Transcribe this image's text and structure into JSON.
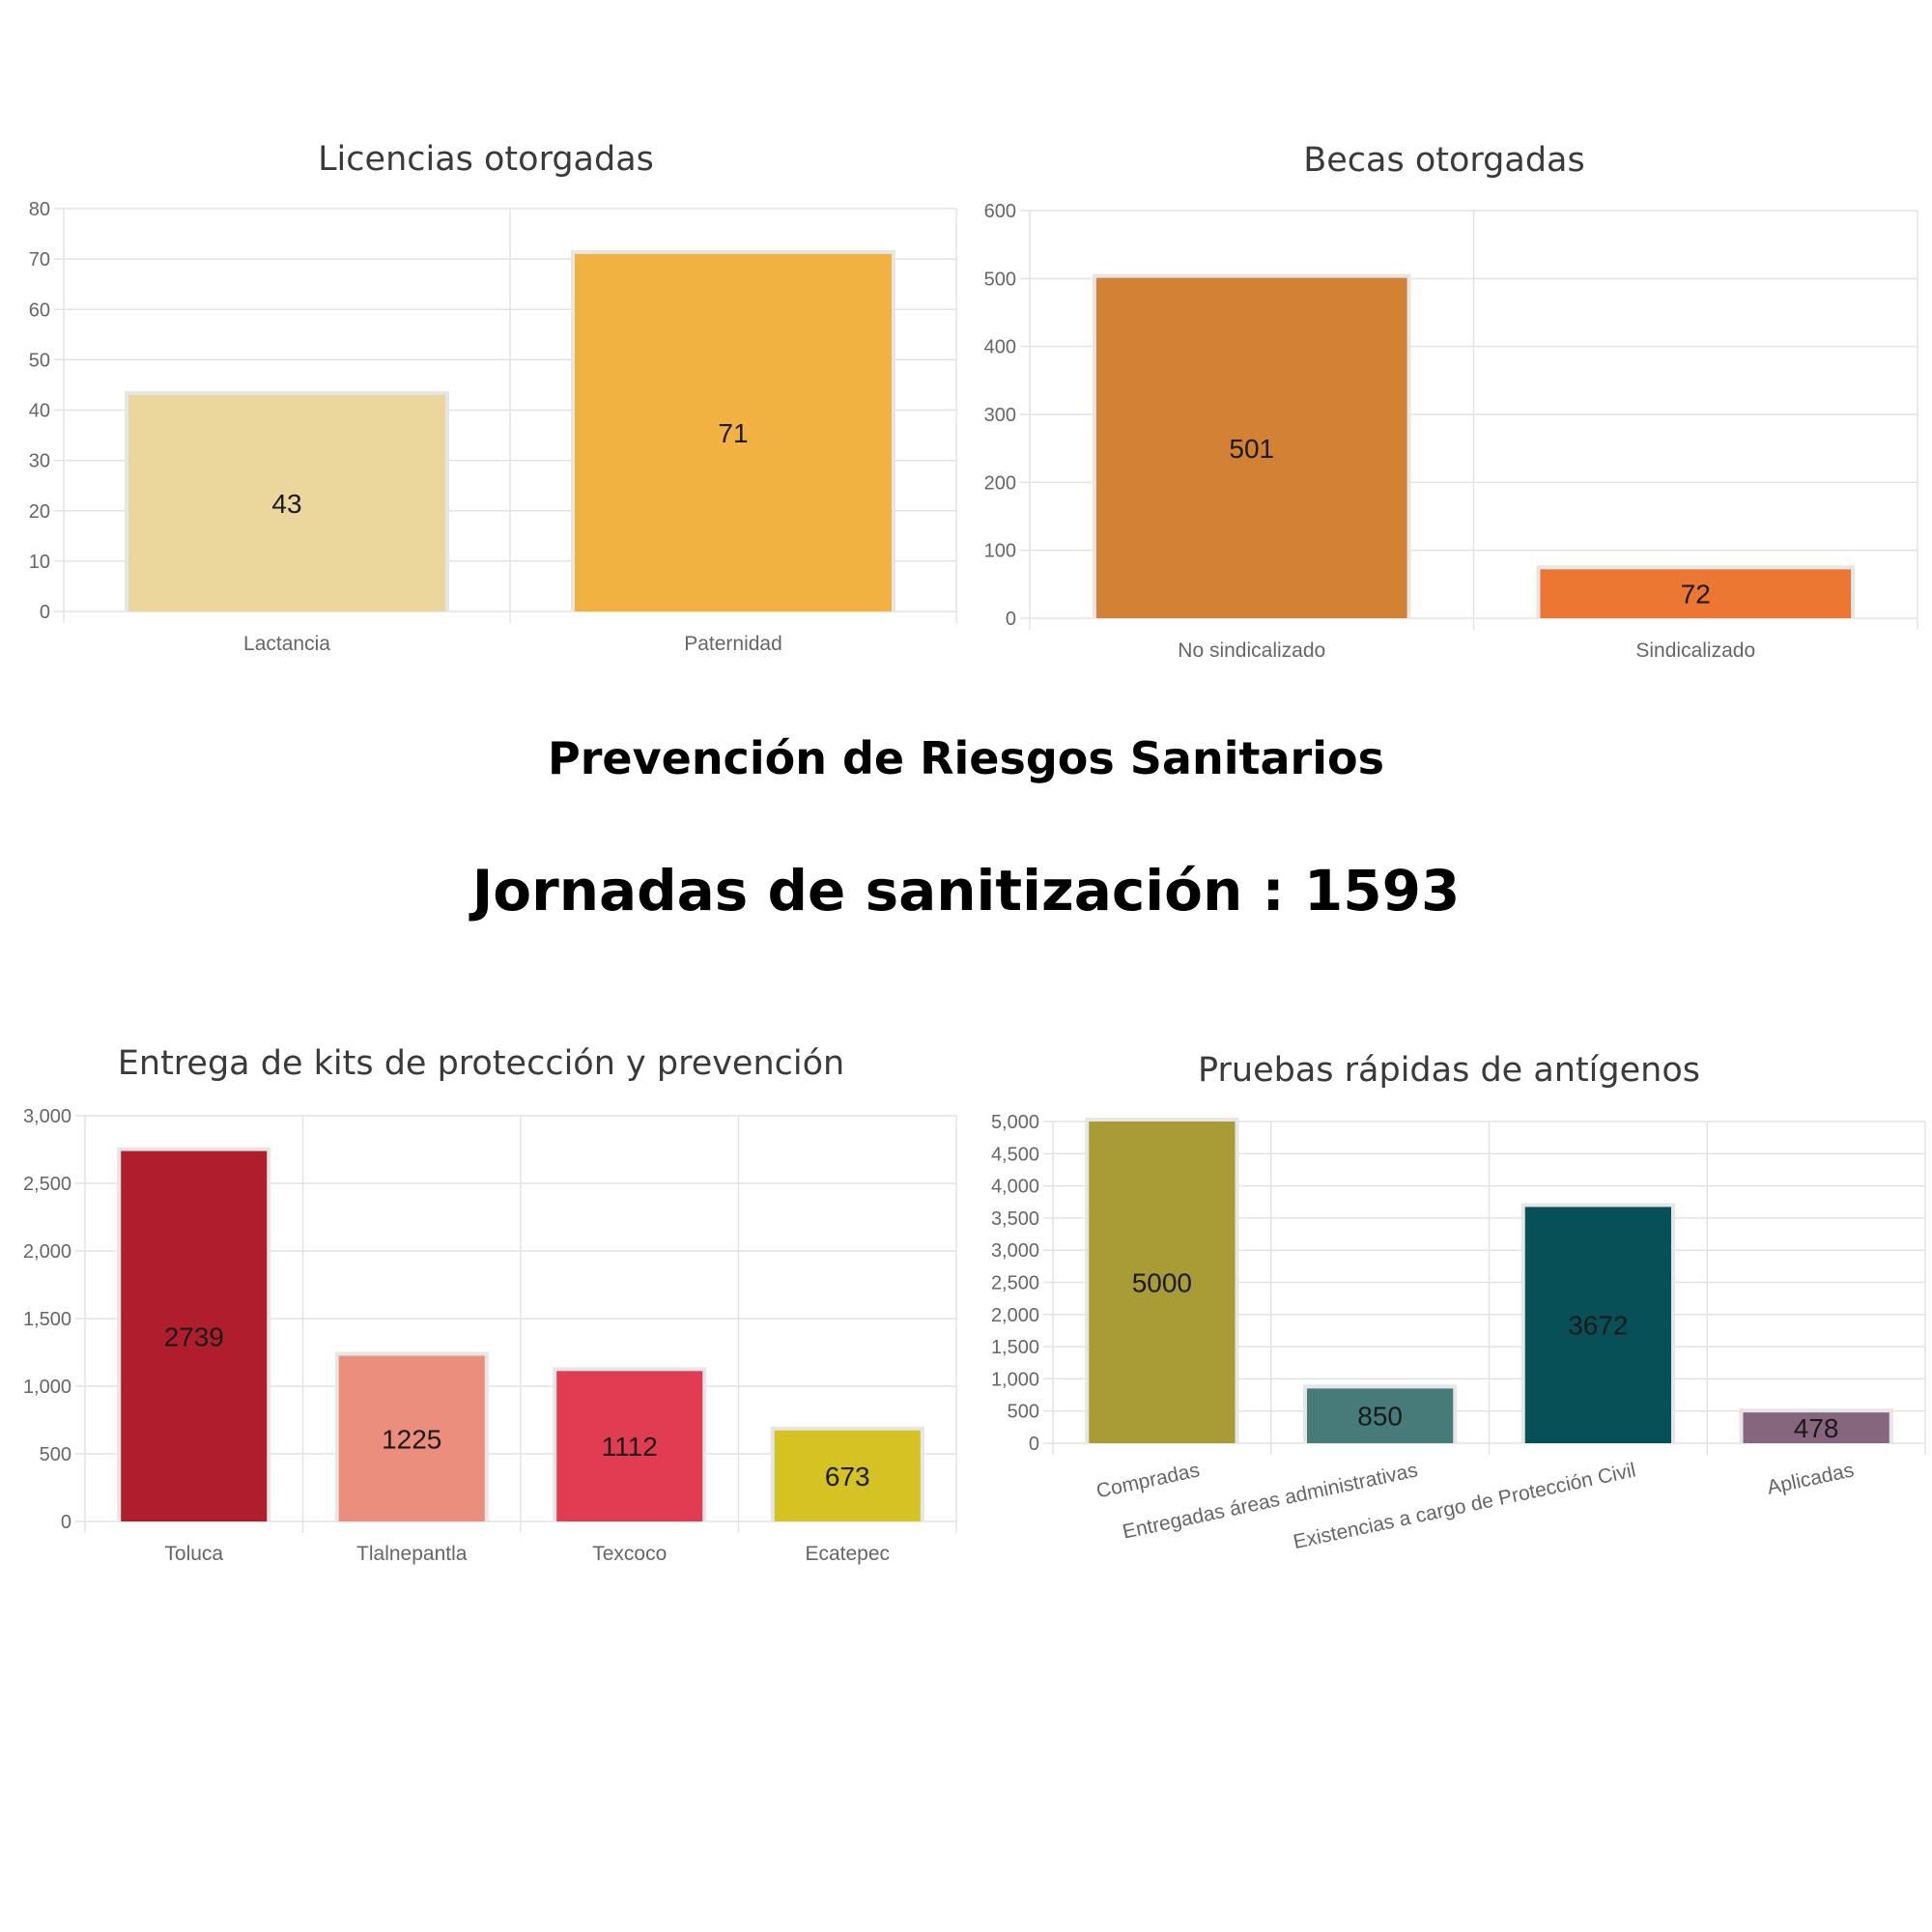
{
  "section": {
    "subtitle": "Prevención de Riesgos Sanitarios",
    "headline": "Jornadas de sanitización : 1593"
  },
  "chart_data": [
    {
      "type": "bar",
      "title": "Licencias otorgadas",
      "categories": [
        "Lactancia",
        "Paternidad"
      ],
      "values": [
        43,
        71
      ],
      "value_labels": [
        "43",
        "71"
      ],
      "colors": [
        "#ebd79b",
        "#f2b241"
      ],
      "ylim": [
        0,
        80
      ],
      "yticks": [
        0,
        10,
        20,
        30,
        40,
        50,
        60,
        70,
        80
      ],
      "ytick_labels": [
        "0",
        "10",
        "20",
        "30",
        "40",
        "50",
        "60",
        "70",
        "80"
      ],
      "grid": true,
      "legend": "none"
    },
    {
      "type": "bar",
      "title": "Becas otorgadas",
      "categories": [
        "No sindicalizado",
        "Sindicalizado"
      ],
      "values": [
        501,
        72
      ],
      "value_labels": [
        "501",
        "72"
      ],
      "colors": [
        "#d38235",
        "#ec7733"
      ],
      "ylim": [
        0,
        600
      ],
      "yticks": [
        0,
        100,
        200,
        300,
        400,
        500,
        600
      ],
      "ytick_labels": [
        "0",
        "100",
        "200",
        "300",
        "400",
        "500",
        "600"
      ],
      "grid": true,
      "legend": "none"
    },
    {
      "type": "bar",
      "title": "Entrega de kits de protección y prevención",
      "categories": [
        "Toluca",
        "Tlalnepantla",
        "Texcoco",
        "Ecatepec"
      ],
      "values": [
        2739,
        1225,
        1112,
        673
      ],
      "value_labels": [
        "2739",
        "1225",
        "1112",
        "673"
      ],
      "colors": [
        "#b01e2d",
        "#ec8e7d",
        "#e23c52",
        "#d4c322"
      ],
      "ylim": [
        0,
        3000
      ],
      "yticks": [
        0,
        500,
        1000,
        1500,
        2000,
        2500,
        3000
      ],
      "ytick_labels": [
        "0",
        "500",
        "1,000",
        "1,500",
        "2,000",
        "2,500",
        "3,000"
      ],
      "grid": true,
      "legend": "none"
    },
    {
      "type": "bar",
      "title": "Pruebas rápidas de antígenos",
      "categories": [
        "Compradas",
        "Entregadas áreas administrativas",
        "Existencias a cargo de Protección Civil",
        "Aplicadas"
      ],
      "values": [
        5000,
        850,
        3672,
        478
      ],
      "value_labels": [
        "5000",
        "850",
        "3672",
        "478"
      ],
      "colors": [
        "#a99c37",
        "#467b7a",
        "#085057",
        "#86667e"
      ],
      "ylim": [
        0,
        5000
      ],
      "yticks": [
        0,
        500,
        1000,
        1500,
        2000,
        2500,
        3000,
        3500,
        4000,
        4500,
        5000
      ],
      "ytick_labels": [
        "0",
        "500",
        "1,000",
        "1,500",
        "2,000",
        "2,500",
        "3,000",
        "3,500",
        "4,000",
        "4,500",
        "5,000"
      ],
      "grid": true,
      "legend": "none"
    }
  ]
}
